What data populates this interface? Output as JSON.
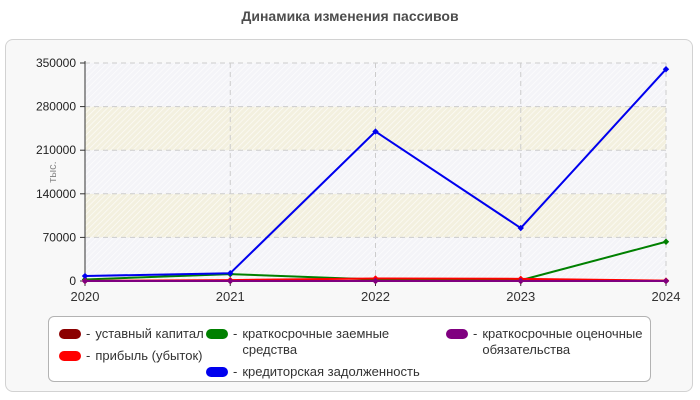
{
  "title": "Динамика изменения пассивов",
  "legend": {
    "prefix": "-"
  },
  "colors": {
    "title": "#4d4d4d",
    "axis": "#333333",
    "grid": "#cccccc",
    "panel_bg": "#f8f8f8",
    "band_light": "#f4f4f8",
    "band_cream": "#f3f0df",
    "hatch_line": "#ffffff",
    "tick_label": "#222222",
    "year_label": "#333333",
    "ylabel_gray": "#8a8a8a"
  },
  "chart_data": {
    "type": "line",
    "title": "Динамика изменения пассивов",
    "xlabel": "",
    "ylabel": "тыс.",
    "x": [
      "2020",
      "2021",
      "2022",
      "2023",
      "2024"
    ],
    "yticks": [
      0,
      70000,
      140000,
      210000,
      280000,
      350000
    ],
    "ylim": [
      0,
      350000
    ],
    "grid": true,
    "legend_position": "bottom",
    "series": [
      {
        "name": "уставный капитал",
        "color": "#8b0000",
        "values": [
          10,
          10,
          10,
          10,
          10
        ]
      },
      {
        "name": "прибыль (убыток)",
        "color": "#ff0000",
        "values": [
          300,
          1500,
          4000,
          3500,
          700
        ]
      },
      {
        "name": "краткосрочные заемные средства",
        "color": "#008000",
        "values": [
          2500,
          11000,
          2500,
          1200,
          63000
        ]
      },
      {
        "name": "кредиторская задолженность",
        "color": "#0000ee",
        "values": [
          8000,
          12500,
          240000,
          85000,
          340000
        ]
      },
      {
        "name": "краткосрочные оценочные обязательства",
        "color": "#800080",
        "values": [
          100,
          100,
          100,
          100,
          100
        ]
      }
    ]
  }
}
